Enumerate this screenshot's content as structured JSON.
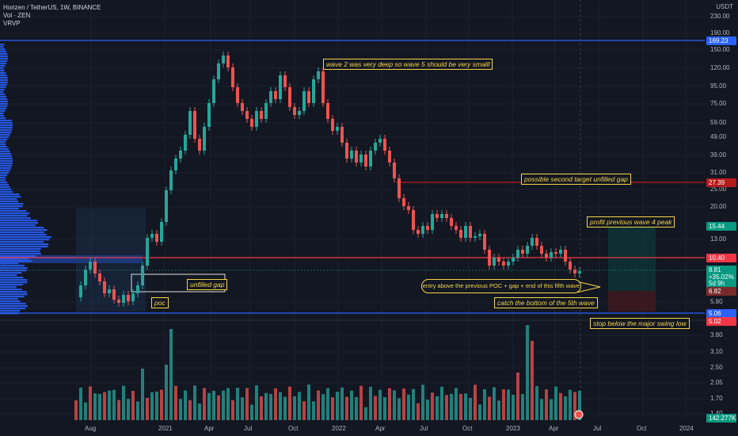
{
  "legend": {
    "title": "Horizen / TetherUS, 1W, BINANCE",
    "volume_indicator": "Vol · ZEN",
    "profile_indicator": "VRVP"
  },
  "axis": {
    "currency": "USDT",
    "price_ticks": [
      "230.00",
      "190.00",
      "150.00",
      "120.00",
      "95.00",
      "75.00",
      "59.00",
      "49.00",
      "39.00",
      "31.00",
      "25.00",
      "20.00",
      "13.00",
      "5.80",
      "3.80",
      "3.10",
      "2.50",
      "2.05",
      "1.70",
      "1.40"
    ],
    "time_ticks": [
      "Aug",
      "2021",
      "Apr",
      "Jul",
      "Oct",
      "2022",
      "Apr",
      "Jul",
      "Oct",
      "2023",
      "Apr",
      "Jul",
      "Oct",
      "2024"
    ]
  },
  "price_tags": [
    {
      "value": "169.23",
      "color": "#2962ff"
    },
    {
      "value": "27.39",
      "color": "#b71c1c"
    },
    {
      "value": "15.44",
      "color": "#089981"
    },
    {
      "value": "10.40",
      "color": "#f23645"
    },
    {
      "value": "8.81",
      "color": "#089981"
    },
    {
      "value": "+35.02%",
      "color": "#089981"
    },
    {
      "value": "5d 9h",
      "color": "#089981"
    },
    {
      "value": "6.82",
      "color": "#7b2a2a"
    },
    {
      "value": "5.06",
      "color": "#2962ff"
    },
    {
      "value": "5.02",
      "color": "#f23645"
    },
    {
      "value": "142.277K",
      "color": "#089981"
    }
  ],
  "annotations": {
    "wave2": "wave 2 was very deep so wave 5 should be very smalll",
    "second_target": "possible second target unfilled gap",
    "profit": "profit previous wave 4 peak",
    "unfilled_gap": "unfilled gap",
    "poc": "poc",
    "entry": "entry above the previous POC + gap + end of this fifth wave",
    "catch_bottom": "catch the bottom of the 5th wave",
    "stop": "stop below the major swing low"
  },
  "colors": {
    "up": "#26a69a",
    "down": "#ef5350",
    "background": "#131722",
    "annotation": "#f5d547",
    "profile": "#2962ff"
  }
}
